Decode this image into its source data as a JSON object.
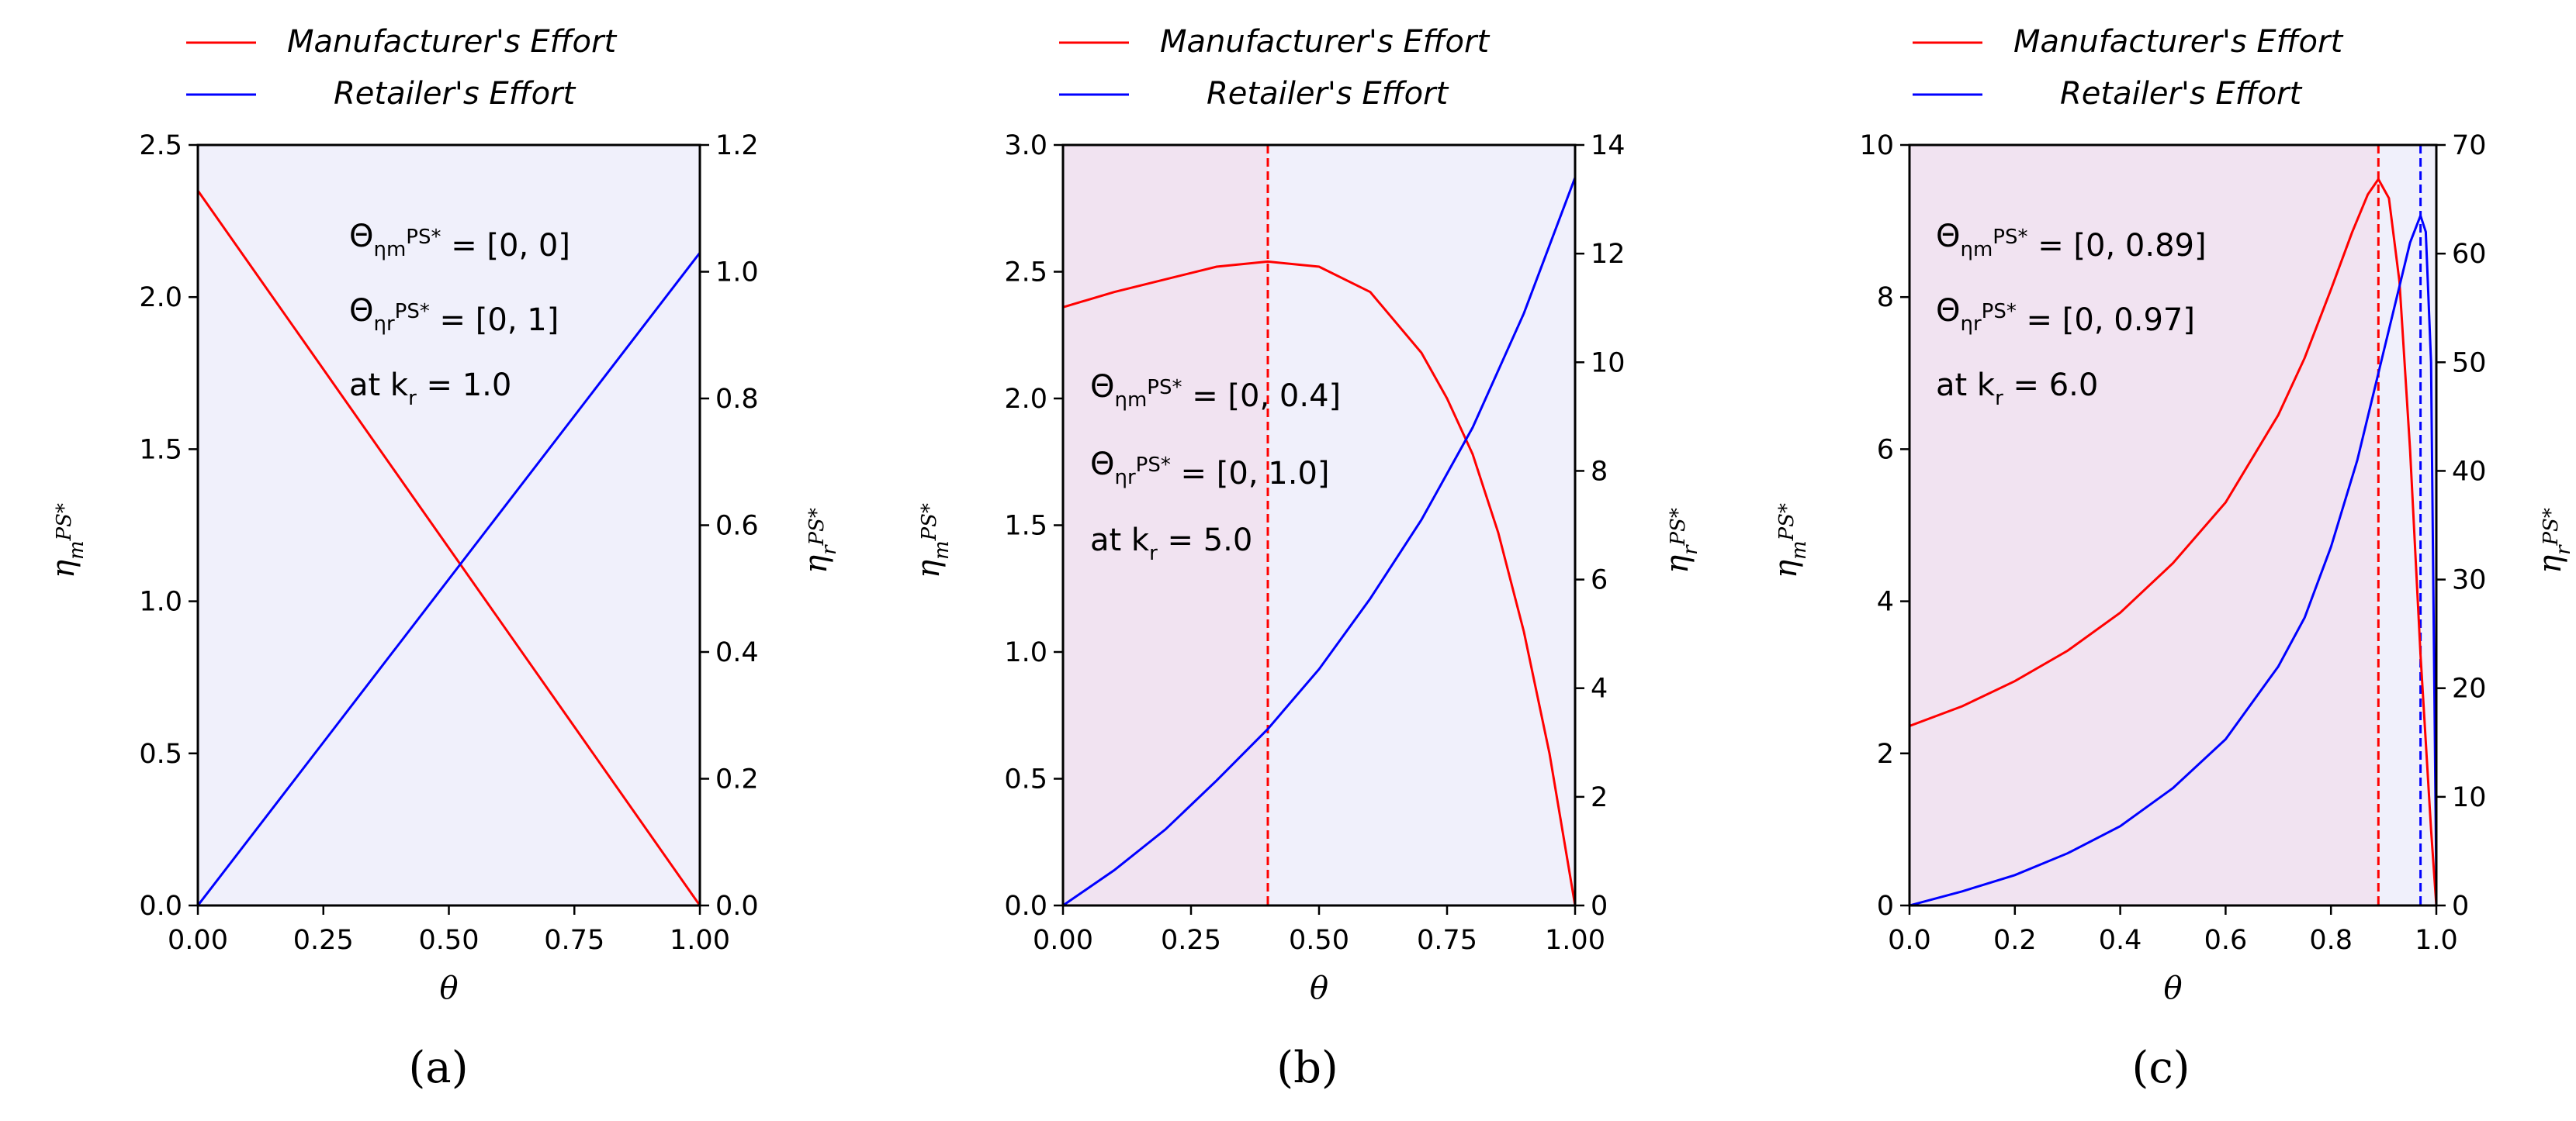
{
  "chart_data": [
    {
      "panel_label": "(a)",
      "type": "line",
      "legend": [
        "Manufacturer's Effort",
        "Retailer's Effort"
      ],
      "legend_placement": "top-left",
      "xlabel": "θ",
      "ylabel_left": "η_m^{PS*}",
      "ylabel_right": "η_r^{PS*}",
      "xlim": [
        0,
        1
      ],
      "ylim_left": [
        0,
        2.5
      ],
      "ylim_right": [
        0,
        1.2
      ],
      "xticks": [
        "0.00",
        "0.25",
        "0.50",
        "0.75",
        "1.00"
      ],
      "yticks_left": [
        "0.0",
        "0.5",
        "1.0",
        "1.5",
        "2.0",
        "2.5"
      ],
      "yticks_right": [
        "0.0",
        "0.2",
        "0.4",
        "0.6",
        "0.8",
        "1.0",
        "1.2"
      ],
      "background_color": "#f0f0fb",
      "shaded_region": null,
      "vlines": [],
      "annotations": [
        "Θ_{η_m}^{PS*} = [0, 0]",
        "Θ_{η_r}^{PS*} = [0, 1]",
        "at  k_r = 1.0"
      ],
      "series": [
        {
          "name": "Manufacturer's Effort",
          "axis": "left",
          "color": "#ff0000",
          "x": [
            0,
            0.25,
            0.5,
            0.75,
            1.0
          ],
          "y": [
            2.35,
            1.7625,
            1.175,
            0.5875,
            0.0
          ]
        },
        {
          "name": "Retailer's Effort",
          "axis": "right",
          "color": "#0000ff",
          "x": [
            0,
            0.25,
            0.5,
            0.75,
            1.0
          ],
          "y": [
            0.0,
            0.2575,
            0.515,
            0.7725,
            1.03
          ]
        }
      ]
    },
    {
      "panel_label": "(b)",
      "type": "line",
      "legend": [
        "Manufacturer's Effort",
        "Retailer's Effort"
      ],
      "legend_placement": "top-left",
      "xlabel": "θ",
      "ylabel_left": "η_m^{PS*}",
      "ylabel_right": "η_r^{PS*}",
      "xlim": [
        0,
        1
      ],
      "ylim_left": [
        0,
        3.0
      ],
      "ylim_right": [
        0,
        14
      ],
      "xticks": [
        "0.00",
        "0.25",
        "0.50",
        "0.75",
        "1.00"
      ],
      "yticks_left": [
        "0.0",
        "0.5",
        "1.0",
        "1.5",
        "2.0",
        "2.5",
        "3.0"
      ],
      "yticks_right": [
        "0",
        "2",
        "4",
        "6",
        "8",
        "10",
        "12",
        "14"
      ],
      "background_color": "#f0f0fb",
      "shaded_region": {
        "x0": 0,
        "x1": 0.4,
        "color": "#f1e3f1"
      },
      "vlines": [
        {
          "x": 0.4,
          "color": "#ff0000"
        }
      ],
      "annotations": [
        "Θ_{η_m}^{PS*} = [0, 0.4]",
        "Θ_{η_r}^{PS*} = [0, 1.0]",
        "at  k_r = 5.0"
      ],
      "series": [
        {
          "name": "Manufacturer's Effort",
          "axis": "left",
          "color": "#ff0000",
          "x": [
            0,
            0.1,
            0.2,
            0.3,
            0.4,
            0.5,
            0.6,
            0.7,
            0.75,
            0.8,
            0.85,
            0.9,
            0.95,
            1.0
          ],
          "y": [
            2.36,
            2.42,
            2.47,
            2.52,
            2.54,
            2.52,
            2.42,
            2.18,
            2.0,
            1.78,
            1.47,
            1.08,
            0.6,
            0.0
          ]
        },
        {
          "name": "Retailer's Effort",
          "axis": "right",
          "color": "#0000ff",
          "x": [
            0,
            0.1,
            0.2,
            0.3,
            0.4,
            0.5,
            0.6,
            0.7,
            0.8,
            0.9,
            1.0
          ],
          "y": [
            0.0,
            0.65,
            1.4,
            2.3,
            3.25,
            4.35,
            5.65,
            7.1,
            8.8,
            10.9,
            13.4
          ]
        }
      ]
    },
    {
      "panel_label": "(c)",
      "type": "line",
      "legend": [
        "Manufacturer's Effort",
        "Retailer's Effort"
      ],
      "legend_placement": "top-left",
      "xlabel": "θ",
      "ylabel_left": "η_m^{PS*}",
      "ylabel_right": "η_r^{PS*}",
      "xlim": [
        0,
        1
      ],
      "ylim_left": [
        0,
        10
      ],
      "ylim_right": [
        0,
        70
      ],
      "xticks": [
        "0.0",
        "0.2",
        "0.4",
        "0.6",
        "0.8",
        "1.0"
      ],
      "yticks_left": [
        "0",
        "2",
        "4",
        "6",
        "8",
        "10"
      ],
      "yticks_right": [
        "0",
        "10",
        "20",
        "30",
        "40",
        "50",
        "60",
        "70"
      ],
      "background_color": "#f0f0fb",
      "shaded_region": {
        "x0": 0,
        "x1": 0.89,
        "color": "#f1e3f1"
      },
      "vlines": [
        {
          "x": 0.89,
          "color": "#ff0000"
        },
        {
          "x": 0.97,
          "color": "#0000ff"
        }
      ],
      "annotations": [
        "Θ_{η_m}^{PS*} = [0, 0.89]",
        "Θ_{η_r}^{PS*} = [0, 0.97]",
        "at  k_r = 6.0"
      ],
      "series": [
        {
          "name": "Manufacturer's Effort",
          "axis": "left",
          "color": "#ff0000",
          "x": [
            0,
            0.1,
            0.2,
            0.3,
            0.4,
            0.5,
            0.6,
            0.7,
            0.75,
            0.8,
            0.84,
            0.87,
            0.89,
            0.91,
            0.93,
            0.95,
            0.97,
            0.99,
            1.0
          ],
          "y": [
            2.36,
            2.62,
            2.95,
            3.35,
            3.85,
            4.5,
            5.3,
            6.45,
            7.2,
            8.1,
            8.85,
            9.35,
            9.55,
            9.3,
            8.2,
            6.0,
            3.3,
            1.0,
            0.0
          ]
        },
        {
          "name": "Retailer's Effort",
          "axis": "right",
          "color": "#0000ff",
          "x": [
            0,
            0.1,
            0.2,
            0.3,
            0.4,
            0.5,
            0.6,
            0.7,
            0.75,
            0.8,
            0.85,
            0.9,
            0.93,
            0.95,
            0.97,
            0.98,
            0.99,
            1.0
          ],
          "y": [
            0.0,
            1.3,
            2.8,
            4.8,
            7.3,
            10.8,
            15.3,
            22.0,
            26.5,
            33.0,
            41.0,
            51.0,
            57.0,
            61.0,
            63.5,
            62.0,
            50.0,
            2.0
          ]
        }
      ]
    }
  ]
}
